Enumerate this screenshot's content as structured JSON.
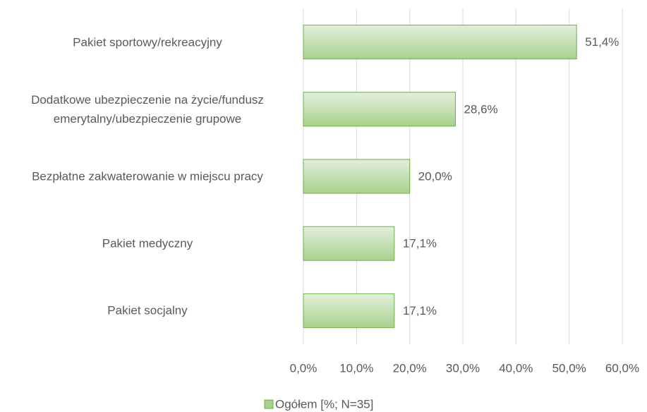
{
  "chart_data": {
    "type": "bar",
    "orientation": "horizontal",
    "categories": [
      "Pakiet sportowy/rekreacyjny",
      "Dodatkowe ubezpieczenie na życie/fundusz emerytalny/ubezpieczenie grupowe",
      "Bezpłatne zakwaterowanie w miejscu pracy",
      "Pakiet medyczny",
      "Pakiet socjalny"
    ],
    "series": [
      {
        "name": "Ogółem [%; N=35]",
        "color": "#a9d18e",
        "values": [
          51.4,
          28.6,
          20.0,
          17.1,
          17.1
        ],
        "value_labels": [
          "51,4%",
          "28,6%",
          "20,0%",
          "17,1%",
          "17,1%"
        ]
      }
    ],
    "xlim": [
      0,
      60
    ],
    "xticks": [
      {
        "value": 0,
        "label": "0,0%"
      },
      {
        "value": 10,
        "label": "10,0%"
      },
      {
        "value": 20,
        "label": "20,0%"
      },
      {
        "value": 30,
        "label": "30,0%"
      },
      {
        "value": 40,
        "label": "40,0%"
      },
      {
        "value": 50,
        "label": "50,0%"
      },
      {
        "value": 60,
        "label": "60,0%"
      }
    ],
    "grid": true,
    "legend": "bottom"
  }
}
